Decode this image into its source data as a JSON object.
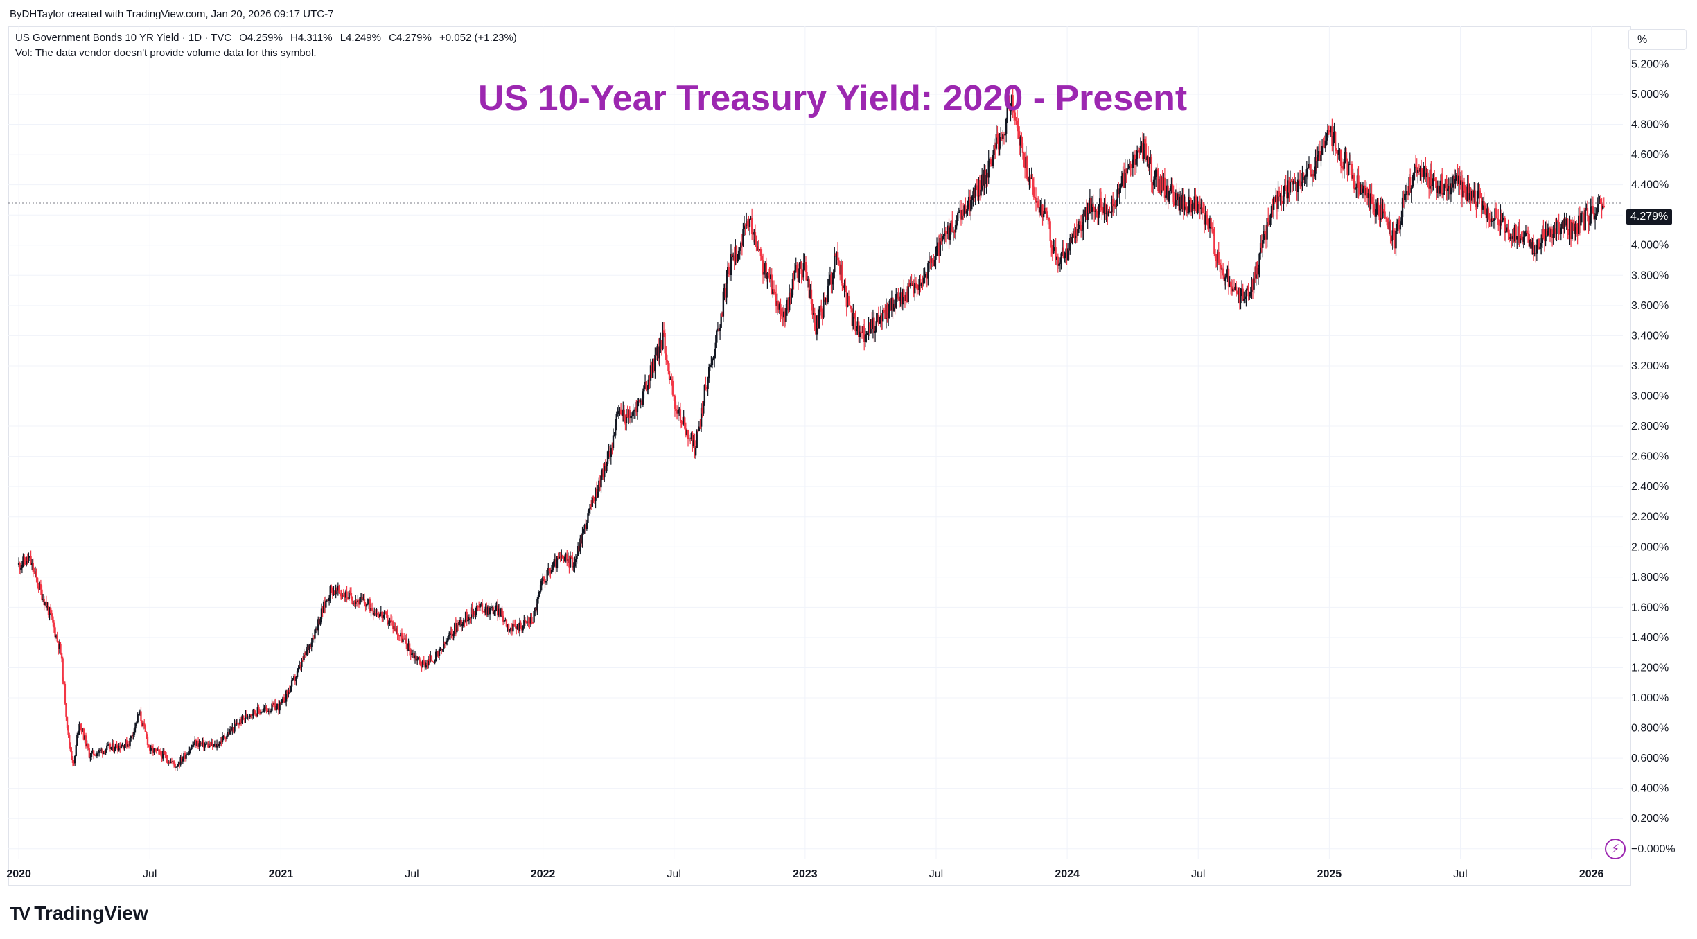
{
  "header": {
    "credit": "ByDHTaylor created with TradingView.com, Jan 20, 2026 09:17 UTC-7"
  },
  "legend": {
    "symbol": "US Government Bonds 10 YR Yield · 1D · TVC",
    "open": "O4.259%",
    "high": "H4.311%",
    "low": "L4.249%",
    "close": "C4.279%",
    "change": "+0.052 (+1.23%)",
    "vol_note": "Vol: The data vendor doesn't provide volume data for this symbol."
  },
  "price_axis": {
    "unit": "%"
  },
  "last_price": {
    "label": "4.279%",
    "value": 4.279
  },
  "brand": {
    "name": "TradingView",
    "logo": "TV"
  },
  "icons": {
    "bolt": "lightning-icon"
  },
  "colors": {
    "title": "#9c27b0",
    "up": "#131722",
    "down": "#f23645",
    "grid": "#f0f3fa"
  },
  "chart_data": {
    "type": "candlestick",
    "title": "US 10-Year Treasury Yield: 2020 - Present",
    "ylabel": "%",
    "ylim": [
      -0.07,
      5.45
    ],
    "xlim": [
      2019.96,
      2026.12
    ],
    "y_ticks": [
      "5.200%",
      "5.000%",
      "4.800%",
      "4.600%",
      "4.400%",
      "4.200%",
      "4.000%",
      "3.800%",
      "3.600%",
      "3.400%",
      "3.200%",
      "3.000%",
      "2.800%",
      "2.600%",
      "2.400%",
      "2.200%",
      "2.000%",
      "1.800%",
      "1.600%",
      "1.400%",
      "1.200%",
      "1.000%",
      "0.800%",
      "0.600%",
      "0.400%",
      "0.200%",
      "−0.000%"
    ],
    "y_tick_values": [
      5.2,
      5.0,
      4.8,
      4.6,
      4.4,
      4.2,
      4.0,
      3.8,
      3.6,
      3.4,
      3.2,
      3.0,
      2.8,
      2.6,
      2.4,
      2.2,
      2.0,
      1.8,
      1.6,
      1.4,
      1.2,
      1.0,
      0.8,
      0.6,
      0.4,
      0.2,
      0.0
    ],
    "x_ticks": [
      {
        "label": "2020",
        "t": 2020.0,
        "year": true
      },
      {
        "label": "Jul",
        "t": 2020.5,
        "year": false
      },
      {
        "label": "2021",
        "t": 2021.0,
        "year": true
      },
      {
        "label": "Jul",
        "t": 2021.5,
        "year": false
      },
      {
        "label": "2022",
        "t": 2022.0,
        "year": true
      },
      {
        "label": "Jul",
        "t": 2022.5,
        "year": false
      },
      {
        "label": "2023",
        "t": 2023.0,
        "year": true
      },
      {
        "label": "Jul",
        "t": 2023.5,
        "year": false
      },
      {
        "label": "2024",
        "t": 2024.0,
        "year": true
      },
      {
        "label": "Jul",
        "t": 2024.5,
        "year": false
      },
      {
        "label": "2025",
        "t": 2025.0,
        "year": true
      },
      {
        "label": "Jul",
        "t": 2025.5,
        "year": false
      },
      {
        "label": "2026",
        "t": 2026.0,
        "year": true
      }
    ],
    "series": [
      {
        "name": "US10Y",
        "points": [
          [
            2020.0,
            1.88
          ],
          [
            2020.04,
            1.92
          ],
          [
            2020.08,
            1.72
          ],
          [
            2020.12,
            1.55
          ],
          [
            2020.16,
            1.3
          ],
          [
            2020.19,
            0.72
          ],
          [
            2020.21,
            0.55
          ],
          [
            2020.23,
            0.85
          ],
          [
            2020.27,
            0.62
          ],
          [
            2020.33,
            0.66
          ],
          [
            2020.42,
            0.7
          ],
          [
            2020.46,
            0.9
          ],
          [
            2020.5,
            0.66
          ],
          [
            2020.55,
            0.62
          ],
          [
            2020.6,
            0.55
          ],
          [
            2020.67,
            0.7
          ],
          [
            2020.75,
            0.68
          ],
          [
            2020.83,
            0.82
          ],
          [
            2020.88,
            0.9
          ],
          [
            2020.96,
            0.93
          ],
          [
            2021.0,
            0.95
          ],
          [
            2021.06,
            1.15
          ],
          [
            2021.12,
            1.4
          ],
          [
            2021.19,
            1.72
          ],
          [
            2021.25,
            1.68
          ],
          [
            2021.33,
            1.62
          ],
          [
            2021.42,
            1.5
          ],
          [
            2021.5,
            1.3
          ],
          [
            2021.54,
            1.22
          ],
          [
            2021.6,
            1.28
          ],
          [
            2021.67,
            1.48
          ],
          [
            2021.75,
            1.6
          ],
          [
            2021.83,
            1.58
          ],
          [
            2021.88,
            1.45
          ],
          [
            2021.96,
            1.52
          ],
          [
            2022.0,
            1.78
          ],
          [
            2022.06,
            1.92
          ],
          [
            2022.12,
            1.9
          ],
          [
            2022.17,
            2.2
          ],
          [
            2022.25,
            2.6
          ],
          [
            2022.29,
            2.9
          ],
          [
            2022.33,
            2.85
          ],
          [
            2022.38,
            3.0
          ],
          [
            2022.46,
            3.4
          ],
          [
            2022.5,
            2.95
          ],
          [
            2022.58,
            2.65
          ],
          [
            2022.62,
            3.05
          ],
          [
            2022.67,
            3.45
          ],
          [
            2022.71,
            3.85
          ],
          [
            2022.79,
            4.15
          ],
          [
            2022.83,
            3.9
          ],
          [
            2022.88,
            3.7
          ],
          [
            2022.92,
            3.5
          ],
          [
            2022.96,
            3.8
          ],
          [
            2023.0,
            3.85
          ],
          [
            2023.04,
            3.45
          ],
          [
            2023.08,
            3.65
          ],
          [
            2023.12,
            3.95
          ],
          [
            2023.17,
            3.55
          ],
          [
            2023.21,
            3.4
          ],
          [
            2023.25,
            3.45
          ],
          [
            2023.33,
            3.6
          ],
          [
            2023.4,
            3.7
          ],
          [
            2023.46,
            3.8
          ],
          [
            2023.5,
            3.95
          ],
          [
            2023.58,
            4.15
          ],
          [
            2023.67,
            4.4
          ],
          [
            2023.75,
            4.75
          ],
          [
            2023.79,
            4.95
          ],
          [
            2023.83,
            4.6
          ],
          [
            2023.88,
            4.3
          ],
          [
            2023.92,
            4.2
          ],
          [
            2023.96,
            3.88
          ],
          [
            2024.0,
            3.95
          ],
          [
            2024.04,
            4.1
          ],
          [
            2024.08,
            4.25
          ],
          [
            2024.17,
            4.25
          ],
          [
            2024.25,
            4.55
          ],
          [
            2024.29,
            4.65
          ],
          [
            2024.33,
            4.45
          ],
          [
            2024.42,
            4.3
          ],
          [
            2024.5,
            4.25
          ],
          [
            2024.55,
            4.1
          ],
          [
            2024.58,
            3.85
          ],
          [
            2024.67,
            3.65
          ],
          [
            2024.71,
            3.75
          ],
          [
            2024.75,
            4.05
          ],
          [
            2024.79,
            4.3
          ],
          [
            2024.88,
            4.4
          ],
          [
            2024.96,
            4.55
          ],
          [
            2025.0,
            4.75
          ],
          [
            2025.04,
            4.6
          ],
          [
            2025.08,
            4.5
          ],
          [
            2025.12,
            4.35
          ],
          [
            2025.17,
            4.25
          ],
          [
            2025.21,
            4.2
          ],
          [
            2025.25,
            4.0
          ],
          [
            2025.29,
            4.35
          ],
          [
            2025.33,
            4.5
          ],
          [
            2025.42,
            4.4
          ],
          [
            2025.5,
            4.4
          ],
          [
            2025.58,
            4.28
          ],
          [
            2025.67,
            4.12
          ],
          [
            2025.75,
            4.05
          ],
          [
            2025.79,
            4.0
          ],
          [
            2025.83,
            4.1
          ],
          [
            2025.88,
            4.12
          ],
          [
            2025.92,
            4.1
          ],
          [
            2025.96,
            4.15
          ],
          [
            2026.05,
            4.279
          ]
        ]
      }
    ]
  }
}
